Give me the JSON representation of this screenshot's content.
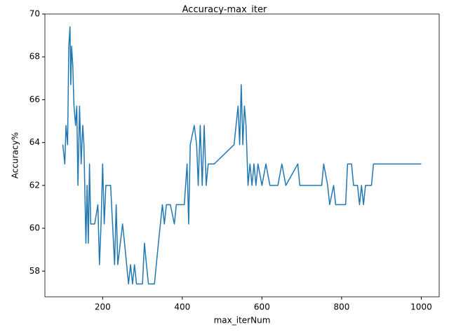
{
  "chart_data": {
    "type": "line",
    "title": "Accuracy-max_iter",
    "x_label": "max_iterNum",
    "y_label": "Accuracy%",
    "x": [
      100,
      105,
      108,
      112,
      115,
      118,
      120,
      122,
      125,
      128,
      132,
      135,
      138,
      142,
      146,
      150,
      153,
      156,
      158,
      161,
      164,
      167,
      170,
      180,
      188,
      192,
      196,
      200,
      204,
      208,
      220,
      230,
      234,
      238,
      250,
      255,
      265,
      270,
      275,
      280,
      285,
      300,
      305,
      310,
      315,
      330,
      340,
      345,
      350,
      355,
      360,
      370,
      380,
      385,
      395,
      405,
      412,
      416,
      420,
      430,
      436,
      440,
      445,
      450,
      455,
      460,
      465,
      480,
      530,
      540,
      544,
      548,
      552,
      556,
      560,
      565,
      570,
      575,
      580,
      585,
      590,
      600,
      610,
      620,
      640,
      650,
      660,
      690,
      695,
      750,
      755,
      765,
      770,
      780,
      785,
      810,
      815,
      825,
      830,
      840,
      845,
      850,
      855,
      860,
      875,
      880,
      1000
    ],
    "series": [
      {
        "name": "Accuracy",
        "color": "#1f77b4",
        "values": [
          63.9,
          63.0,
          64.8,
          63.9,
          68.5,
          69.4,
          66.7,
          68.5,
          67.6,
          65.7,
          64.8,
          65.7,
          62.0,
          65.7,
          63.0,
          64.8,
          63.9,
          61.1,
          59.3,
          62.0,
          59.3,
          63.0,
          60.2,
          60.2,
          61.1,
          58.3,
          60.2,
          63.0,
          60.2,
          62.0,
          62.0,
          58.3,
          61.1,
          58.3,
          60.2,
          59.3,
          57.4,
          58.3,
          57.4,
          58.3,
          57.4,
          57.4,
          59.3,
          58.3,
          57.4,
          57.4,
          59.3,
          60.2,
          61.1,
          60.2,
          61.1,
          61.1,
          60.2,
          61.1,
          61.1,
          61.1,
          63.0,
          60.2,
          63.9,
          64.8,
          63.9,
          62.0,
          64.8,
          62.0,
          64.8,
          62.0,
          63.0,
          63.0,
          63.9,
          65.7,
          63.9,
          66.7,
          63.9,
          65.7,
          64.8,
          62.0,
          63.0,
          62.0,
          63.0,
          62.0,
          63.0,
          62.0,
          63.0,
          62.0,
          62.0,
          63.0,
          62.0,
          63.0,
          62.0,
          62.0,
          63.0,
          62.0,
          61.1,
          62.0,
          61.1,
          61.1,
          63.0,
          63.0,
          62.0,
          62.0,
          61.1,
          62.0,
          61.1,
          62.0,
          62.0,
          63.0,
          63.0
        ]
      }
    ],
    "xlim": [
      55,
      1045
    ],
    "ylim": [
      56.8,
      70.0
    ],
    "xticks": [
      200,
      400,
      600,
      800,
      1000
    ],
    "yticks": [
      58,
      60,
      62,
      64,
      66,
      68,
      70
    ],
    "grid": false
  }
}
